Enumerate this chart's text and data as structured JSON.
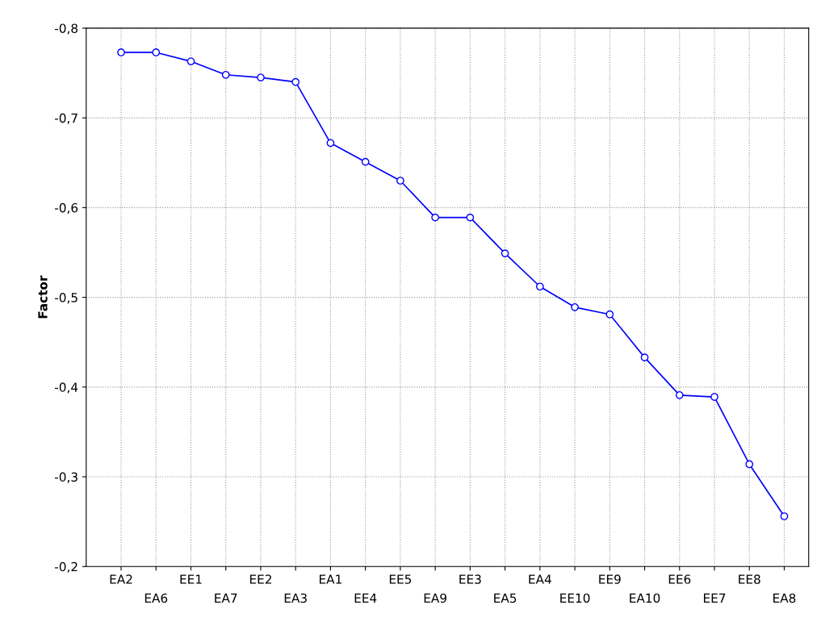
{
  "chart_data": {
    "type": "line",
    "ylabel": "Factor",
    "categories": [
      "EA2",
      "EA6",
      "EE1",
      "EA7",
      "EE2",
      "EA3",
      "EA1",
      "EE4",
      "EE5",
      "EA9",
      "EE3",
      "EA5",
      "EA4",
      "EE10",
      "EE9",
      "EA10",
      "EE6",
      "EE7",
      "EE8",
      "EA8"
    ],
    "series": [
      {
        "color": "#0000ff",
        "values": [
          -0.773,
          -0.773,
          -0.763,
          -0.748,
          -0.745,
          -0.74,
          -0.672,
          -0.651,
          -0.63,
          -0.589,
          -0.589,
          -0.549,
          -0.512,
          -0.489,
          -0.481,
          -0.433,
          -0.391,
          -0.389,
          -0.314,
          -0.256
        ]
      }
    ],
    "ylim": [
      -0.2,
      -0.8
    ],
    "yticks": [
      {
        "value": -0.8,
        "label": "-0,8"
      },
      {
        "value": -0.7,
        "label": "-0,7"
      },
      {
        "value": -0.6,
        "label": "-0,6"
      },
      {
        "value": -0.5,
        "label": "-0,5"
      },
      {
        "value": -0.4,
        "label": "-0,4"
      },
      {
        "value": -0.3,
        "label": "-0,3"
      },
      {
        "value": -0.2,
        "label": "-0,2"
      }
    ],
    "grid": true,
    "marker": "circle",
    "line_style": "solid",
    "legend": false
  }
}
